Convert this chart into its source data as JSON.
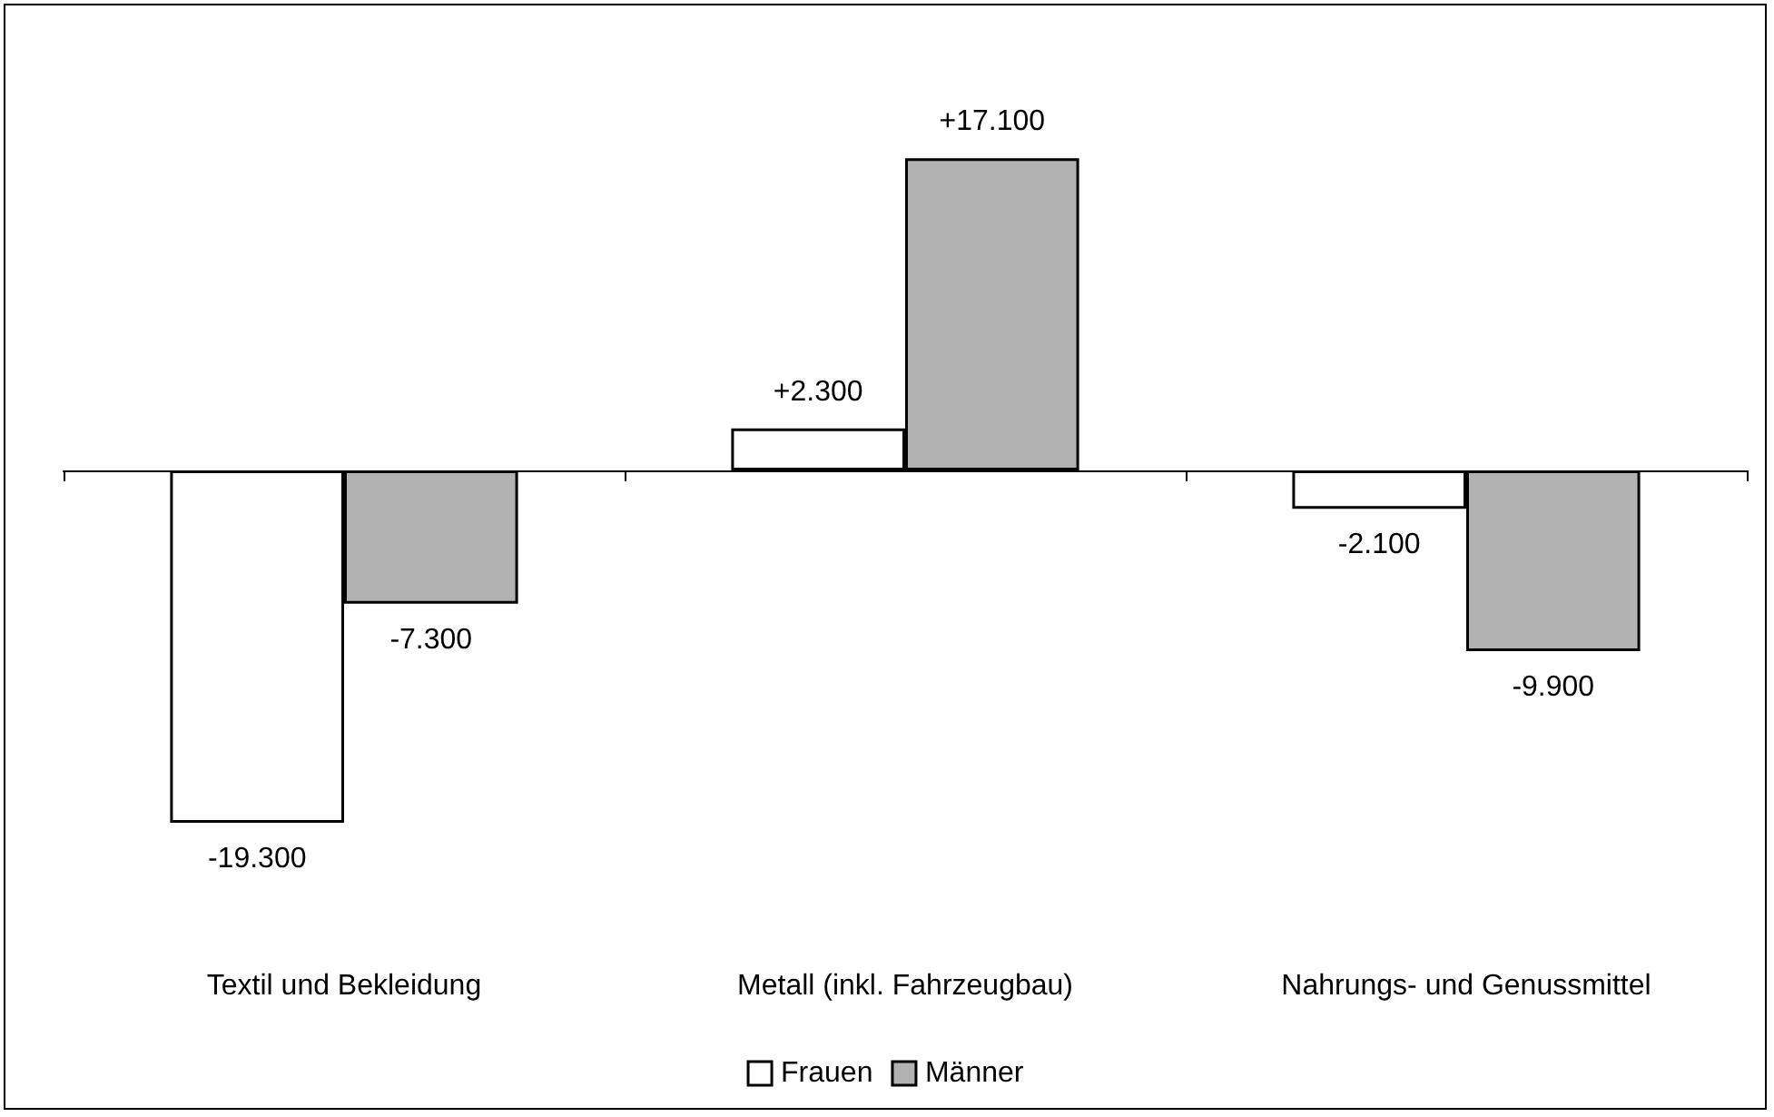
{
  "chart_data": {
    "type": "bar",
    "categories": [
      "Textil und Bekleidung",
      "Metall (inkl. Fahrzeugbau)",
      "Nahrungs- und Genussmittel"
    ],
    "series": [
      {
        "name": "Frauen",
        "color": "#ffffff",
        "values": [
          -19300,
          2300,
          -2100
        ],
        "value_labels": [
          "-19.300",
          "+2.300",
          "-2.100"
        ]
      },
      {
        "name": "Männer",
        "color": "#b2b2b2",
        "values": [
          -7300,
          17100,
          -9900
        ],
        "value_labels": [
          "-7.300",
          "+17.100",
          "-9.900"
        ]
      }
    ],
    "legend": "bottom"
  }
}
